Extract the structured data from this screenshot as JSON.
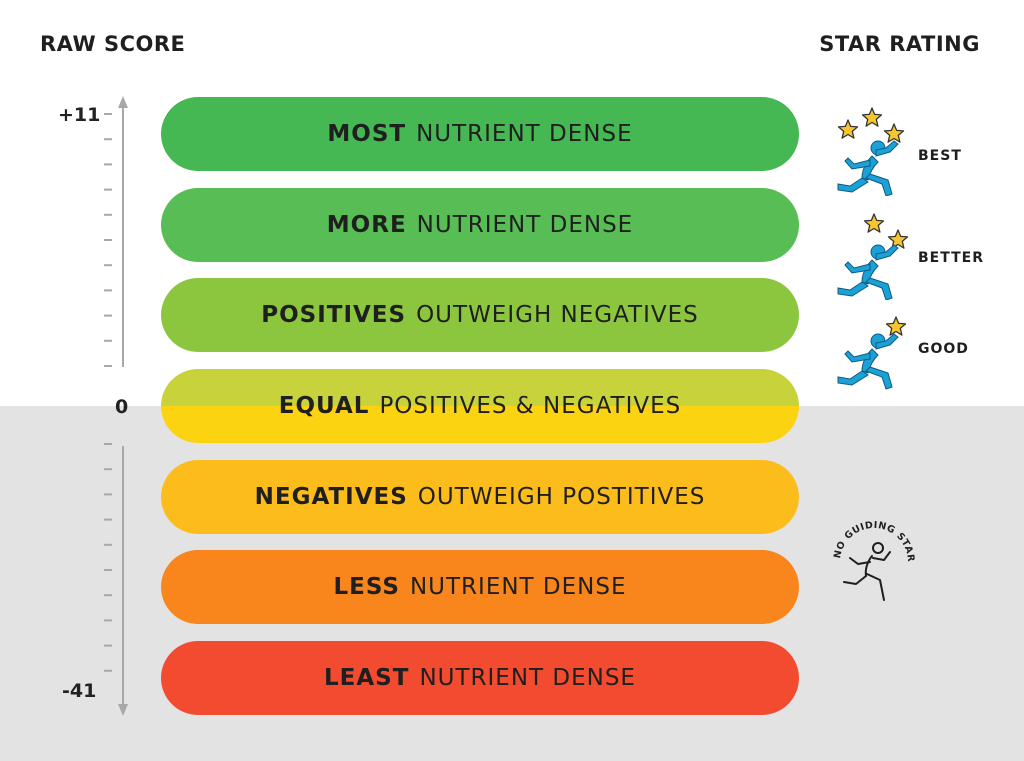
{
  "headings": {
    "raw_score": "RAW SCORE",
    "star_rating": "STAR RATING"
  },
  "scale": {
    "top": "+11",
    "zero": "0",
    "bottom": "-41"
  },
  "bands": [
    {
      "bold": "MOST",
      "rest": "NUTRIENT DENSE",
      "color": "#45b854"
    },
    {
      "bold": "MORE",
      "rest": "NUTRIENT DENSE",
      "color": "#57bd54"
    },
    {
      "bold": "POSITIVES",
      "rest": "OUTWEIGH NEGATIVES",
      "color": "#8cc63f"
    },
    {
      "bold": "EQUAL",
      "rest": "POSITIVES & NEGATIVES",
      "color_top": "#c8d33b",
      "color_bottom": "#fcd310"
    },
    {
      "bold": "NEGATIVES",
      "rest": "OUTWEIGH POSTITIVES",
      "color": "#fbbc1c"
    },
    {
      "bold": "LESS",
      "rest": "NUTRIENT DENSE",
      "color": "#f8861d"
    },
    {
      "bold": "LEAST",
      "rest": "NUTRIENT DENSE",
      "color": "#f24b30"
    }
  ],
  "ratings": [
    {
      "label": "BEST",
      "stars": 3
    },
    {
      "label": "BETTER",
      "stars": 2
    },
    {
      "label": "GOOD",
      "stars": 1
    }
  ],
  "no_stars_badge": "NO GUIDING STARS",
  "colors": {
    "runner": "#1ba1d6",
    "star": "#f7c62f",
    "grey_zone": "#e3e3e3"
  }
}
